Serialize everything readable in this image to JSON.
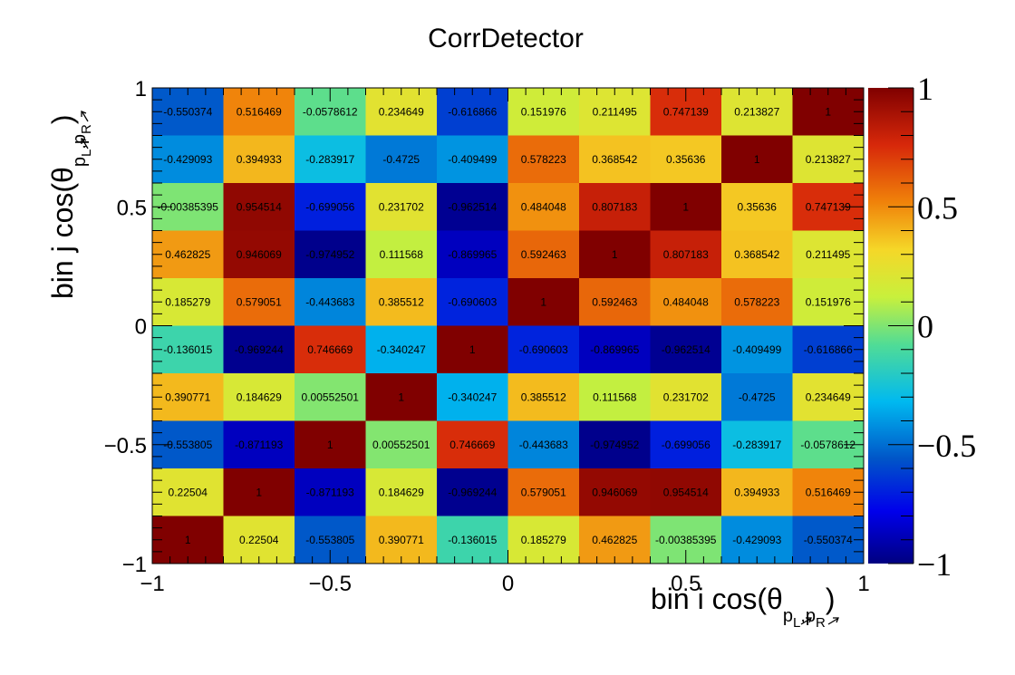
{
  "chart_data": {
    "type": "heatmap",
    "title": "CorrDetector",
    "xlabel": {
      "prefix": "bin i cos(θ",
      "sub1": "p",
      "sub2": "L",
      "sep": ",",
      "sub3": "p",
      "sub4": "R",
      "suffix": ")"
    },
    "ylabel": {
      "prefix": "bin j cos(θ",
      "sub1": "p",
      "sub2": "L",
      "sep": ",",
      "sub3": "p",
      "sub4": "R",
      "suffix": ")"
    },
    "xlim": [
      -1,
      1
    ],
    "ylim": [
      -1,
      1
    ],
    "xticks": [
      "−1",
      "−0.5",
      "0",
      "0.5",
      "1"
    ],
    "yticks": [
      "−1",
      "−0.5",
      "0",
      "0.5",
      "1"
    ],
    "zlim": [
      -1,
      1
    ],
    "zticks": [
      "−1",
      "−0.5",
      "0",
      "0.5",
      "1"
    ],
    "nbins": 10,
    "rows_top_to_bottom": [
      [
        "-0.550374",
        "0.516469",
        "-0.0578612",
        "0.234649",
        "-0.616866",
        "0.151976",
        "0.211495",
        "0.747139",
        "0.213827",
        "1"
      ],
      [
        "-0.429093",
        "0.394933",
        "-0.283917",
        "-0.4725",
        "-0.409499",
        "0.578223",
        "0.368542",
        "0.35636",
        "1",
        "0.213827"
      ],
      [
        "-0.00385395",
        "0.954514",
        "-0.699056",
        "0.231702",
        "-0.962514",
        "0.484048",
        "0.807183",
        "1",
        "0.35636",
        "0.747139"
      ],
      [
        "0.462825",
        "0.946069",
        "-0.974952",
        "0.111568",
        "-0.869965",
        "0.592463",
        "1",
        "0.807183",
        "0.368542",
        "0.211495"
      ],
      [
        "0.185279",
        "0.579051",
        "-0.443683",
        "0.385512",
        "-0.690603",
        "1",
        "0.592463",
        "0.484048",
        "0.578223",
        "0.151976"
      ],
      [
        "-0.136015",
        "-0.969244",
        "0.746669",
        "-0.340247",
        "1",
        "-0.690603",
        "-0.869965",
        "-0.962514",
        "-0.409499",
        "-0.616866"
      ],
      [
        "0.390771",
        "0.184629",
        "0.00552501",
        "1",
        "-0.340247",
        "0.385512",
        "0.111568",
        "0.231702",
        "-0.4725",
        "0.234649"
      ],
      [
        "-0.553805",
        "-0.871193",
        "1",
        "0.00552501",
        "0.746669",
        "-0.443683",
        "-0.974952",
        "-0.699056",
        "-0.283917",
        "-0.0578612"
      ],
      [
        "0.22504",
        "1",
        "-0.871193",
        "0.184629",
        "-0.969244",
        "0.579051",
        "0.946069",
        "0.954514",
        "0.394933",
        "0.516469"
      ],
      [
        "1",
        "0.22504",
        "-0.553805",
        "0.390771",
        "-0.136015",
        "0.185279",
        "0.462825",
        "-0.00385395",
        "-0.429093",
        "-0.550374"
      ]
    ],
    "colormap": "jet",
    "legend": "colorbar-right"
  }
}
